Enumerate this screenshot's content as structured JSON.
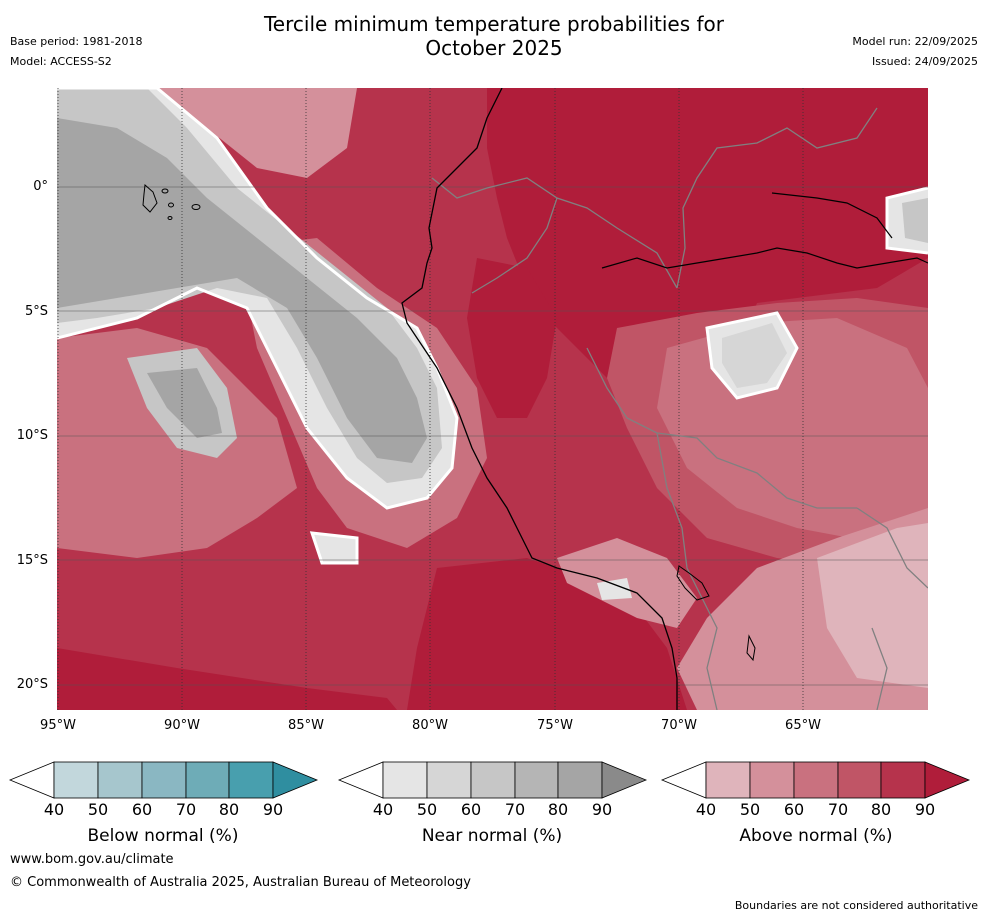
{
  "header": {
    "title_line1": "Tercile minimum temperature probabilities for",
    "title_line2": "October 2025",
    "base_period": "Base period: 1981-2018",
    "model": "Model: ACCESS-S2",
    "model_run": "Model run: 22/09/2025",
    "issued": "Issued: 24/09/2025"
  },
  "map": {
    "lat_labels": [
      "0°",
      "5°S",
      "10°S",
      "15°S",
      "20°S"
    ],
    "lon_labels": [
      "95°W",
      "90°W",
      "85°W",
      "80°W",
      "75°W",
      "70°W",
      "65°W"
    ],
    "region": "Western South America (Ecuador, Peru, Bolivia) and eastern Pacific",
    "colors": {
      "above_40": "#dfb4bb",
      "above_50": "#d4909b",
      "above_60": "#c9717f",
      "above_70": "#c05566",
      "above_80": "#b6334c",
      "above_90": "#b01d3a",
      "near_40": "#e5e5e5",
      "near_50": "#d6d6d6",
      "near_60": "#c6c6c6",
      "near_70": "#b5b5b5",
      "near_80": "#a5a5a5",
      "near_90": "#8a8a8a",
      "below_40": "#c2d7dc",
      "below_50": "#a6c6cd",
      "below_60": "#8ab7c2",
      "below_70": "#6eacb7",
      "below_80": "#489fae",
      "below_90": "#2f8ea0"
    }
  },
  "colorbars": [
    {
      "key": "below",
      "label": "Below normal (%)",
      "ticks": [
        "40",
        "50",
        "60",
        "70",
        "80",
        "90"
      ]
    },
    {
      "key": "near",
      "label": "Near normal (%)",
      "ticks": [
        "40",
        "50",
        "60",
        "70",
        "80",
        "90"
      ]
    },
    {
      "key": "above",
      "label": "Above normal (%)",
      "ticks": [
        "40",
        "50",
        "60",
        "70",
        "80",
        "90"
      ]
    }
  ],
  "footer": {
    "url": "www.bom.gov.au/climate",
    "copyright": "© Commonwealth of Australia 2025, Australian Bureau of Meteorology",
    "note": "Boundaries are not considered authoritative"
  }
}
